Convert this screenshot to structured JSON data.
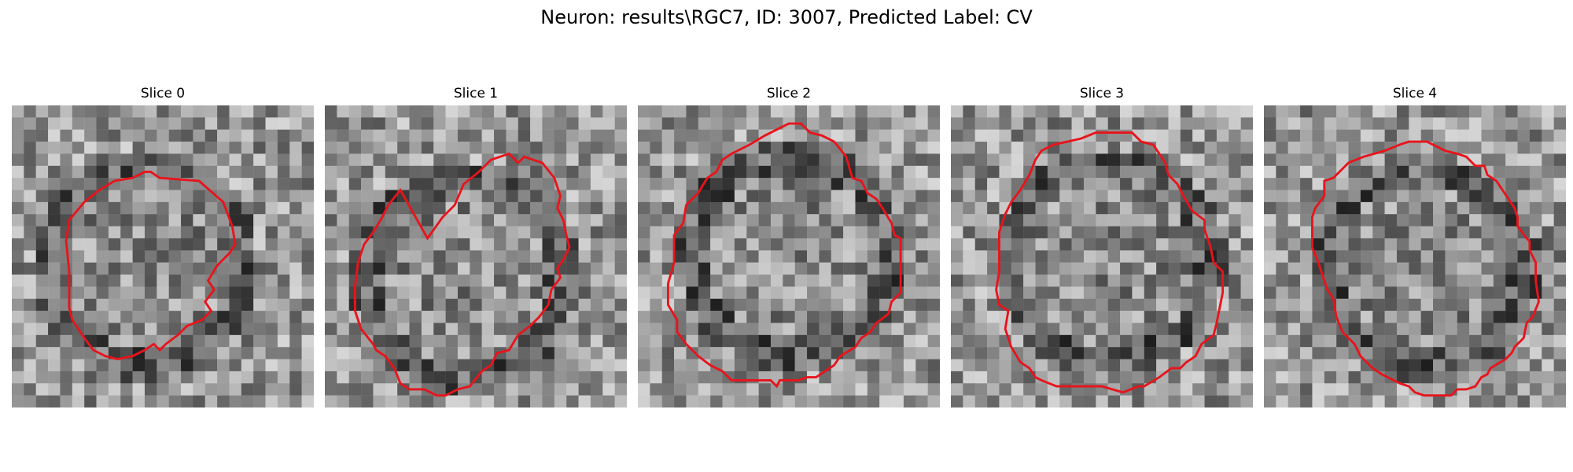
{
  "figure": {
    "title": "Neuron: results\\RGC7, ID: 3007, Predicted Label: CV"
  },
  "panels": [
    {
      "title": "Slice 0"
    },
    {
      "title": "Slice 1"
    },
    {
      "title": "Slice 2"
    },
    {
      "title": "Slice 3"
    },
    {
      "title": "Slice 4"
    }
  ],
  "colors": {
    "contour": "#e8141c",
    "background": "#ffffff"
  }
}
